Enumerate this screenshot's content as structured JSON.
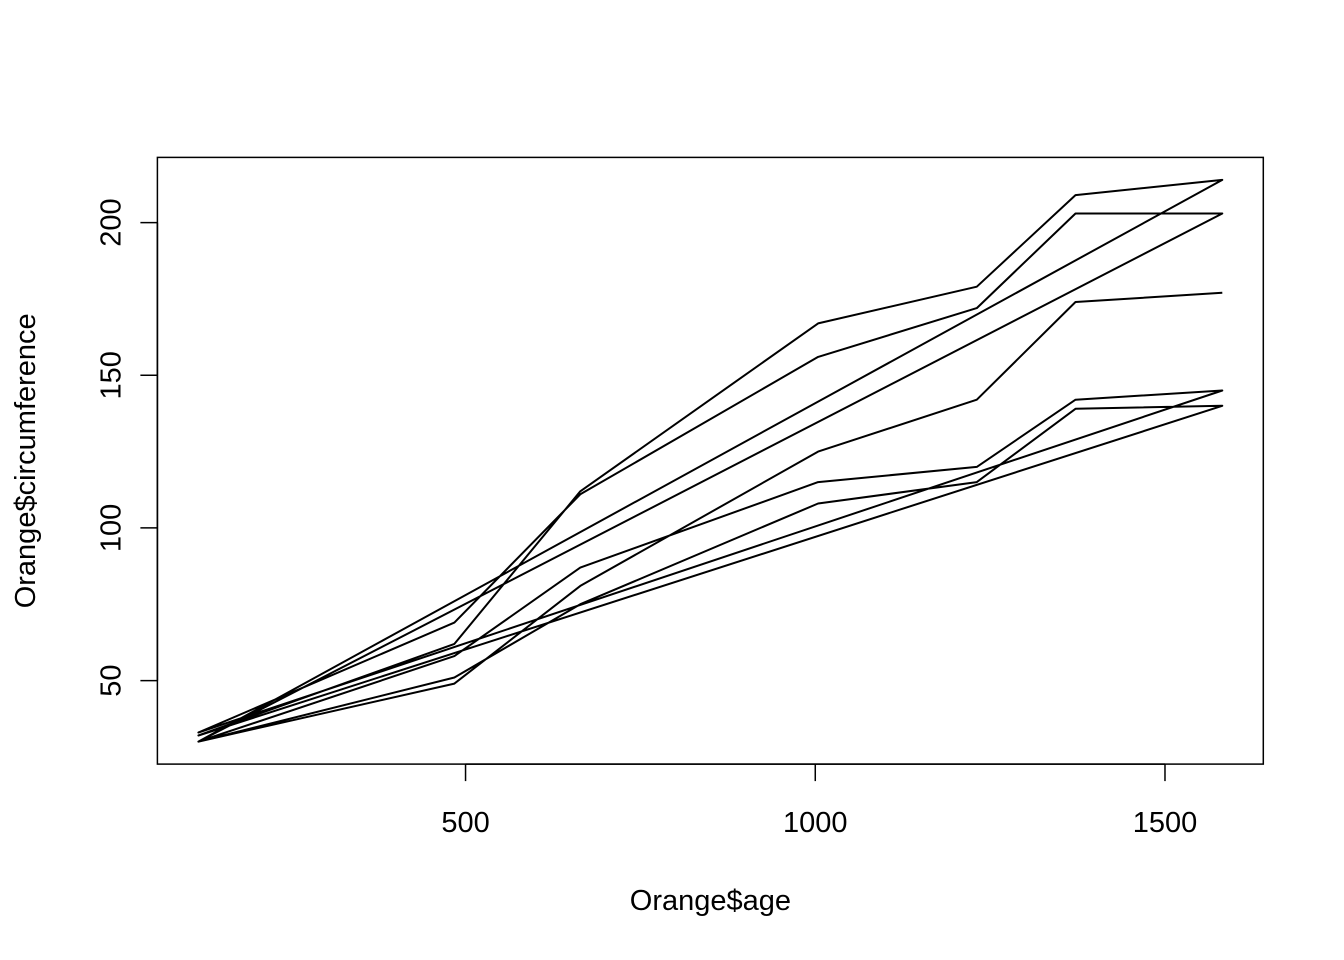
{
  "chart_data": {
    "type": "line",
    "title": "",
    "xlabel": "Orange$age",
    "ylabel": "Orange$circumference",
    "xlim": [
      118,
      1582
    ],
    "ylim": [
      30,
      214
    ],
    "x_ticks": [
      500,
      1000,
      1500
    ],
    "y_ticks": [
      50,
      100,
      150,
      200
    ],
    "grid": false,
    "legend": "none",
    "line_color": "#000000",
    "x": [
      118,
      484,
      664,
      1004,
      1231,
      1372,
      1582,
      118,
      484,
      664,
      1004,
      1231,
      1372,
      1582,
      118,
      484,
      664,
      1004,
      1231,
      1372,
      1582,
      118,
      484,
      664,
      1004,
      1231,
      1372,
      1582,
      118,
      484,
      664,
      1004,
      1231,
      1372,
      1582
    ],
    "y": [
      30,
      58,
      87,
      115,
      120,
      142,
      145,
      33,
      69,
      111,
      156,
      172,
      203,
      203,
      30,
      51,
      75,
      108,
      115,
      139,
      140,
      32,
      62,
      112,
      167,
      179,
      209,
      214,
      30,
      49,
      81,
      125,
      142,
      174,
      177
    ]
  }
}
